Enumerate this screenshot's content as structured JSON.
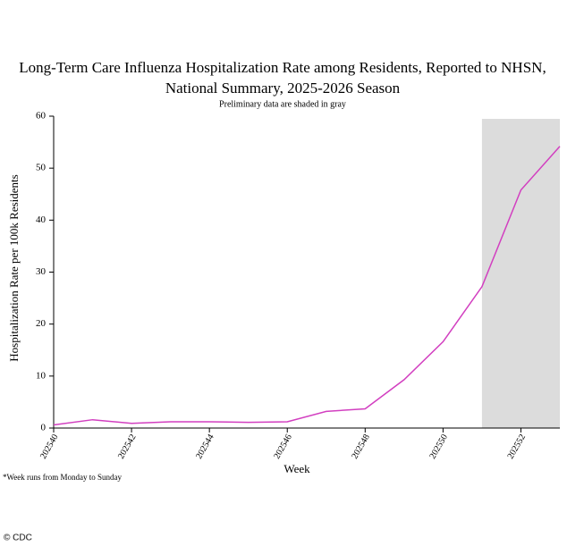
{
  "chart_data": {
    "type": "line",
    "title": [
      "Long-Term Care Influenza Hospitalization Rate among Residents, Reported to NHSN,",
      "National Summary, 2025-2026 Season"
    ],
    "subtitle": "Preliminary data are shaded in gray",
    "x_label": "Week",
    "y_label": "Hospitalization Rate per 100k Residents",
    "footnote": "*Week runs from Monday to Sunday",
    "credit": "© CDC",
    "x": [
      202540,
      202541,
      202542,
      202543,
      202544,
      202545,
      202546,
      202547,
      202548,
      202549,
      202550,
      202551,
      202552,
      202553
    ],
    "series": [
      {
        "name": "Rate",
        "color": "#d23fc0",
        "values": [
          0.6,
          1.6,
          0.9,
          1.2,
          1.2,
          1.1,
          1.2,
          3.2,
          3.7,
          9.3,
          16.6,
          27.2,
          45.8,
          54.2
        ]
      }
    ],
    "shaded_x": [
      202551,
      202553
    ],
    "shade_color": "#dcdcdc",
    "xlim": [
      202540,
      202553
    ],
    "xticks": [
      202540,
      202542,
      202544,
      202546,
      202548,
      202550,
      202552
    ],
    "ylim": [
      0,
      60
    ],
    "yticks": [
      0,
      10,
      20,
      30,
      40,
      50,
      60
    ]
  }
}
